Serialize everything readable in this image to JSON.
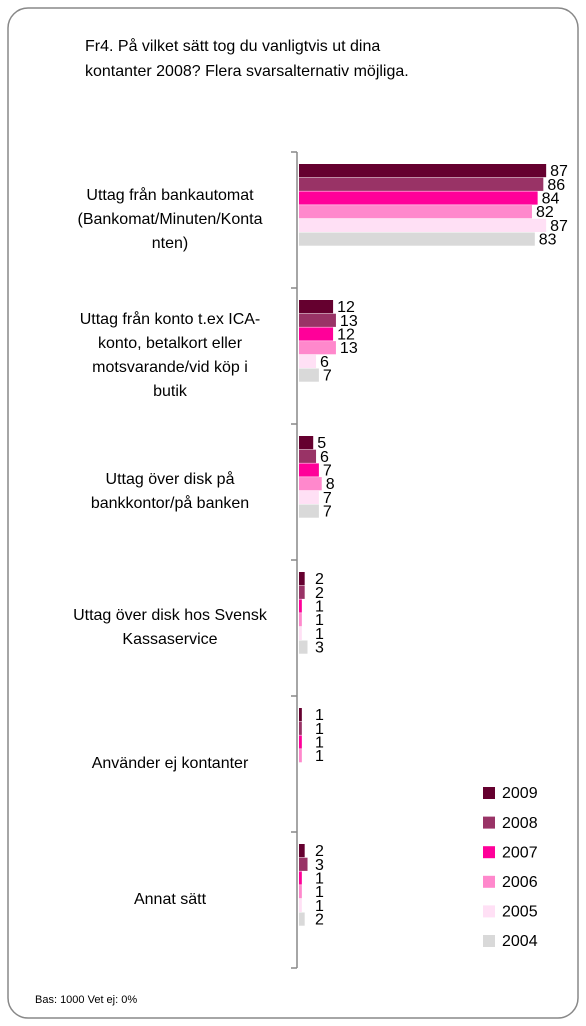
{
  "chart_data": {
    "type": "bar",
    "orientation": "horizontal",
    "title": "Fr4. På vilket sätt tog du vanligtvis ut dina\nkontanter 2008? Flera svarsalternativ möjliga.",
    "categories": [
      "Uttag från bankautomat\n(Bankomat/Minuten/Konta\nnten)",
      "Uttag från konto t.ex ICA-\nkonto, betalkort eller\nmotsvarande/vid köp i\nbutik",
      "Uttag över disk på\nbankkontor/på banken",
      "Uttag över disk hos Svensk\nKassaservice",
      "Använder ej kontanter",
      "Annat sätt"
    ],
    "series": [
      {
        "name": "2009",
        "color": "#65002f",
        "values": [
          87,
          12,
          5,
          2,
          1,
          2
        ]
      },
      {
        "name": "2008",
        "color": "#993366",
        "values": [
          86,
          13,
          6,
          2,
          1,
          3
        ]
      },
      {
        "name": "2007",
        "color": "#ff0099",
        "values": [
          84,
          12,
          7,
          1,
          1,
          1
        ]
      },
      {
        "name": "2006",
        "color": "#ff88cc",
        "values": [
          82,
          13,
          8,
          1,
          1,
          1
        ]
      },
      {
        "name": "2005",
        "color": "#ffe0f5",
        "values": [
          87,
          6,
          7,
          1,
          null,
          1
        ]
      },
      {
        "name": "2004",
        "color": "#d9d9d9",
        "values": [
          83,
          7,
          7,
          3,
          null,
          2
        ]
      }
    ],
    "xlim": [
      0,
      88
    ],
    "legend": "lower right",
    "footnote": "Bas: 1000 Vet ej: 0%"
  }
}
